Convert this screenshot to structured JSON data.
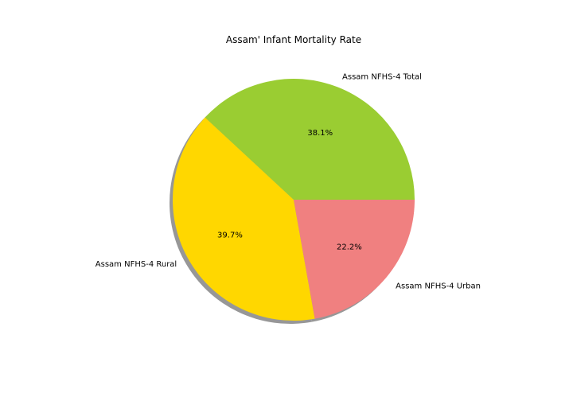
{
  "chart_data": {
    "type": "pie",
    "title": "Assam' Infant Mortality Rate",
    "labels": [
      "Assam NFHS-4 Total",
      "Assam NFHS-4 Rural",
      "Assam NFHS-4 Urban"
    ],
    "values": [
      38.1,
      39.7,
      22.2
    ],
    "percent_labels": [
      "38.1%",
      "39.7%",
      "22.2%"
    ],
    "colors": [
      "#9acd32",
      "#ffd700",
      "#f08080"
    ],
    "start_angle": 0,
    "direction": "counterclockwise",
    "shadow": true,
    "legend": false
  }
}
